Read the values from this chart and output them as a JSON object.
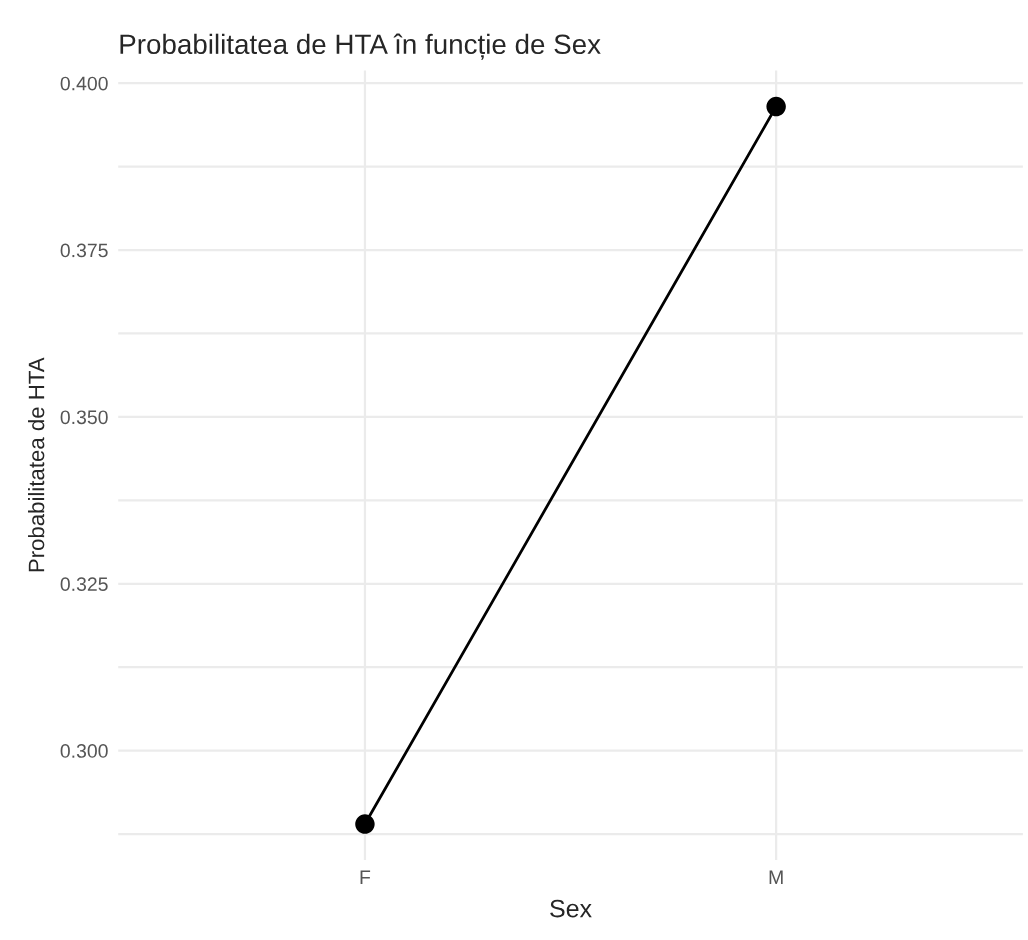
{
  "chart_data": {
    "type": "line",
    "title": "Probabilitatea de HTA în funcție de Sex",
    "xlabel": "Sex",
    "ylabel": "Probabilitatea de HTA",
    "categories": [
      "F",
      "M"
    ],
    "series": [
      {
        "color": "#000000",
        "values": [
          0.289,
          0.3965
        ]
      }
    ],
    "ylim": [
      0.2836,
      0.4019
    ],
    "yticks": [
      {
        "value": 0.2875,
        "label": null
      },
      {
        "value": 0.3,
        "label": "0.300"
      },
      {
        "value": 0.3125,
        "label": null
      },
      {
        "value": 0.325,
        "label": "0.325"
      },
      {
        "value": 0.3375,
        "label": null
      },
      {
        "value": 0.35,
        "label": "0.350"
      },
      {
        "value": 0.3625,
        "label": null
      },
      {
        "value": 0.375,
        "label": "0.375"
      },
      {
        "value": 0.3875,
        "label": null
      },
      {
        "value": 0.4,
        "label": "0.400"
      }
    ],
    "grid": true,
    "marker": "circle",
    "line_style": "solid",
    "legend": false
  }
}
